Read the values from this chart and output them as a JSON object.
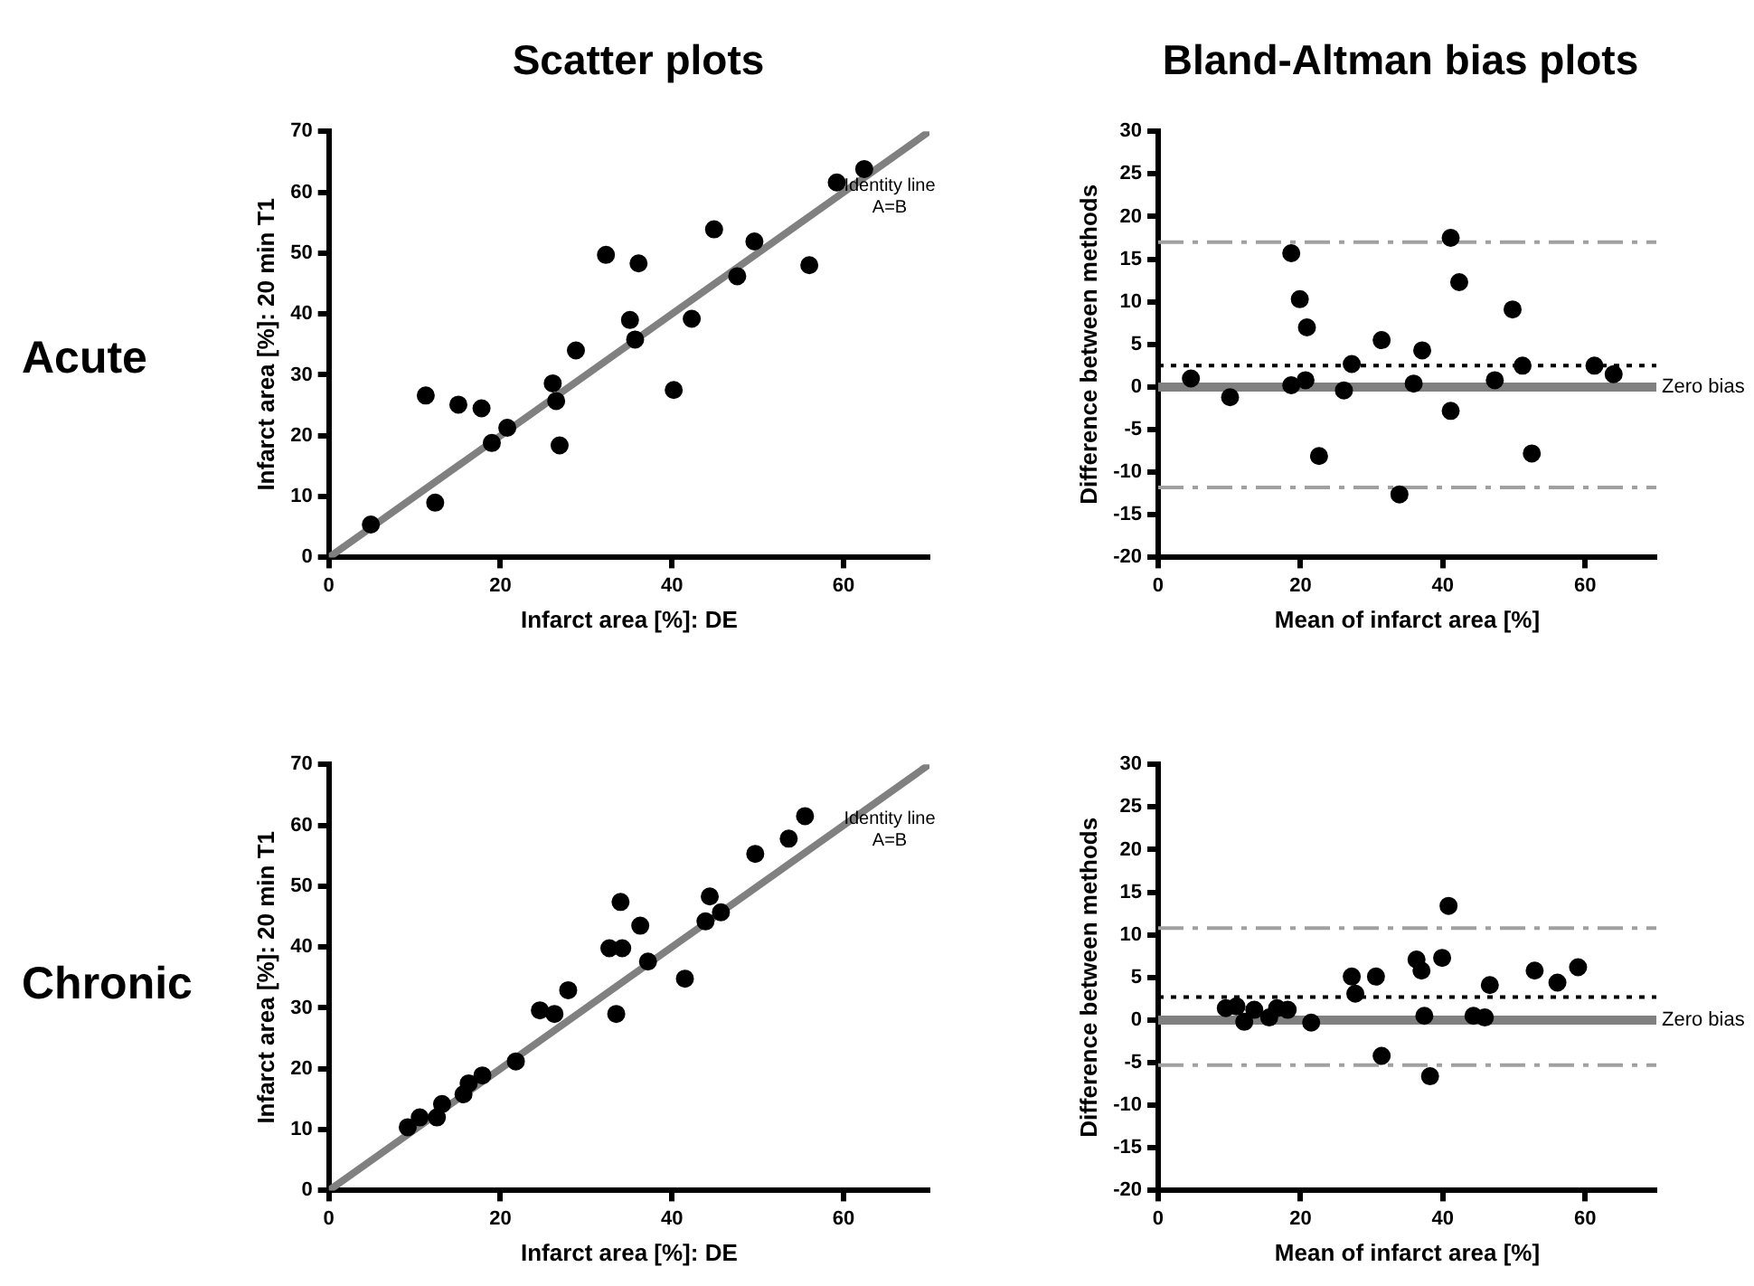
{
  "chart_data": [
    {
      "type": "scatter",
      "title": "Scatter plots",
      "xlabel": "Infarct area [%]: DE",
      "ylabel": "Infarct area [%]: 20 min T1",
      "annotations": [
        "Acute",
        "Identity line",
        "A=B"
      ],
      "xlim": [
        0,
        70
      ],
      "xticks": [
        0,
        20,
        40,
        60
      ],
      "ylim": [
        0,
        70
      ],
      "yticks": [
        0,
        10,
        20,
        30,
        40,
        50,
        60,
        70
      ],
      "marker": "circle",
      "series": [
        {
          "type": "scatter",
          "color": "#000000",
          "x": [
            4.9,
            11.3,
            12.4,
            15.1,
            17.8,
            19,
            20.8,
            26.1,
            26.5,
            26.9,
            28.8,
            32.3,
            35.1,
            35.7,
            36.1,
            40.2,
            42.3,
            44.9,
            47.6,
            49.6,
            56,
            59.2,
            62.4
          ],
          "values": [
            5.4,
            26.6,
            9,
            25.1,
            24.5,
            18.8,
            21.3,
            28.6,
            25.7,
            18.4,
            34,
            49.7,
            39,
            35.8,
            48.3,
            27.5,
            39.2,
            53.9,
            46.2,
            51.9,
            48,
            61.6,
            63.8
          ]
        },
        {
          "type": "line",
          "color": "#808080",
          "marker": "none",
          "x": [
            0,
            70
          ],
          "values": [
            0,
            70
          ]
        }
      ]
    },
    {
      "type": "scatter",
      "title": "Bland-Altman bias plots",
      "xlabel": "Mean of infarct area [%]",
      "ylabel": "Difference between methods",
      "xlim": [
        0,
        70
      ],
      "xticks": [
        0,
        20,
        40,
        60
      ],
      "ylim": [
        -20,
        30
      ],
      "yticks": [
        -20,
        -15,
        -10,
        -5,
        0,
        5,
        10,
        15,
        20,
        25,
        30
      ],
      "marker": "circle",
      "ref_lines": [
        {
          "axis": "y",
          "value": 0,
          "label": "Zero bias",
          "color": "#808080",
          "line_style": "solid"
        },
        {
          "axis": "y",
          "value": 2.5,
          "color": "#000000",
          "line_style": "dotted"
        },
        {
          "axis": "y",
          "value": 17,
          "color": "#a0a0a0",
          "line_style": "dashed"
        },
        {
          "axis": "y",
          "value": -11.8,
          "color": "#a0a0a0",
          "line_style": "dashed"
        }
      ],
      "series": [
        {
          "type": "scatter",
          "color": "#000000",
          "x": [
            4.6,
            10.1,
            18.7,
            19.9,
            20.9,
            18.7,
            20.7,
            22.6,
            26.1,
            27.2,
            31.4,
            33.9,
            35.9,
            37.1,
            41.1,
            41.1,
            42.3,
            47.3,
            49.8,
            51.2,
            52.5,
            61.3,
            64
          ],
          "values": [
            1,
            -1.2,
            15.7,
            10.3,
            7,
            0.2,
            0.8,
            -8.1,
            -0.4,
            2.7,
            5.5,
            -12.6,
            0.4,
            4.3,
            17.5,
            -2.8,
            12.3,
            0.8,
            9.1,
            2.5,
            -7.8,
            2.5,
            1.5
          ]
        }
      ]
    },
    {
      "type": "scatter",
      "xlabel": "Infarct area [%]: DE",
      "ylabel": "Infarct area [%]: 20 min T1",
      "annotations": [
        "Chronic",
        "Identity line",
        "A=B"
      ],
      "xlim": [
        0,
        70
      ],
      "xticks": [
        0,
        20,
        40,
        60
      ],
      "ylim": [
        0,
        70
      ],
      "yticks": [
        0,
        10,
        20,
        30,
        40,
        50,
        60,
        70
      ],
      "marker": "circle",
      "series": [
        {
          "type": "scatter",
          "color": "#000000",
          "x": [
            9.2,
            10.6,
            12.6,
            13.2,
            15.7,
            16.3,
            17.9,
            21.8,
            24.6,
            26.3,
            27.9,
            33.5,
            32.7,
            34.2,
            34,
            36.3,
            37.2,
            41.5,
            43.9,
            44.4,
            45.7,
            49.7,
            53.6,
            55.5
          ],
          "values": [
            10.4,
            12,
            12,
            14.2,
            15.8,
            17.6,
            18.9,
            21.2,
            29.6,
            29,
            32.9,
            29,
            39.8,
            39.8,
            47.4,
            43.5,
            37.6,
            34.8,
            44.2,
            48.3,
            45.7,
            55.3,
            57.8,
            61.5
          ]
        },
        {
          "type": "line",
          "color": "#808080",
          "marker": "none",
          "x": [
            0,
            70
          ],
          "values": [
            0,
            70
          ]
        }
      ]
    },
    {
      "type": "scatter",
      "xlabel": "Mean of infarct area [%]",
      "ylabel": "Difference between methods",
      "xlim": [
        0,
        70
      ],
      "xticks": [
        0,
        20,
        40,
        60
      ],
      "ylim": [
        -20,
        30
      ],
      "yticks": [
        -20,
        -15,
        -10,
        -5,
        0,
        5,
        10,
        15,
        20,
        25,
        30
      ],
      "marker": "circle",
      "ref_lines": [
        {
          "axis": "y",
          "value": 0,
          "label": "Zero bias",
          "color": "#808080",
          "line_style": "solid"
        },
        {
          "axis": "y",
          "value": 2.7,
          "color": "#000000",
          "line_style": "dotted"
        },
        {
          "axis": "y",
          "value": 10.8,
          "color": "#a0a0a0",
          "line_style": "dashed"
        },
        {
          "axis": "y",
          "value": -5.3,
          "color": "#a0a0a0",
          "line_style": "dashed"
        }
      ],
      "series": [
        {
          "type": "scatter",
          "color": "#000000",
          "x": [
            9.5,
            11,
            12.1,
            13.5,
            15.6,
            16.7,
            18.2,
            21.5,
            27.2,
            27.7,
            30.6,
            31.4,
            36.3,
            37,
            37.4,
            38.2,
            39.9,
            40.8,
            44.3,
            45.9,
            46.6,
            52.9,
            56.1,
            59
          ],
          "values": [
            1.4,
            1.6,
            -0.2,
            1.2,
            0.3,
            1.4,
            1.2,
            -0.3,
            5.1,
            3.1,
            5.1,
            -4.2,
            7.1,
            5.8,
            0.5,
            -6.6,
            7.3,
            13.4,
            0.5,
            0.3,
            4.1,
            5.8,
            4.4,
            6.2
          ]
        }
      ]
    }
  ]
}
